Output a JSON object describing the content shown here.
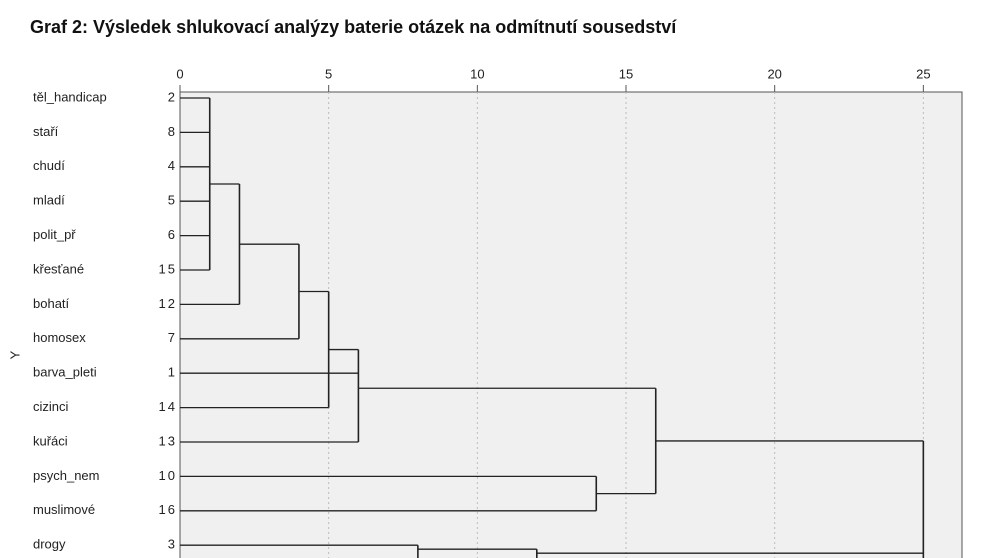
{
  "chart_data": {
    "type": "dendrogram",
    "title": "Graf 2: Výsledek shlukovací analýzy baterie otázek na odmítnutí sousedství",
    "y_label": "Y",
    "labels": [
      "těl_handicap",
      "staří",
      "chudí",
      "mladí",
      "polit_př",
      "křesťané",
      "bohatí",
      "homosex",
      "barva_pleti",
      "cizinci",
      "kuřáci",
      "psych_nem",
      "muslimové",
      "drogy"
    ],
    "case_numbers": [
      "2",
      "8",
      "4",
      "5",
      "6",
      "15",
      "12",
      "7",
      "1",
      "14",
      "13",
      "10",
      "16",
      "3"
    ],
    "merges": [
      {
        "height": 1,
        "leaves": [
          0,
          1,
          2,
          3,
          4,
          5
        ],
        "sub": []
      },
      {
        "height": 2,
        "leaves": [
          6
        ],
        "sub": [
          0
        ]
      },
      {
        "height": 4,
        "leaves": [
          7
        ],
        "sub": [
          1
        ]
      },
      {
        "height": 5,
        "leaves": [
          9
        ],
        "sub": [
          2
        ]
      },
      {
        "height": 6,
        "leaves": [
          8,
          10
        ],
        "sub": [
          3
        ]
      },
      {
        "height": 14,
        "leaves": [
          11,
          12
        ],
        "sub": []
      },
      {
        "height": 16,
        "leaves": [],
        "sub": [
          4,
          5
        ]
      },
      {
        "height": 8,
        "leaves": [
          13
        ],
        "sub": []
      },
      {
        "height": 12,
        "leaves": [],
        "sub": [
          7
        ]
      },
      {
        "height": 25,
        "leaves": [],
        "sub": [
          6,
          8
        ]
      }
    ],
    "xlim": [
      0,
      26.3
    ],
    "xticks": [
      0,
      5,
      10,
      15,
      20,
      25
    ],
    "grid": true
  }
}
